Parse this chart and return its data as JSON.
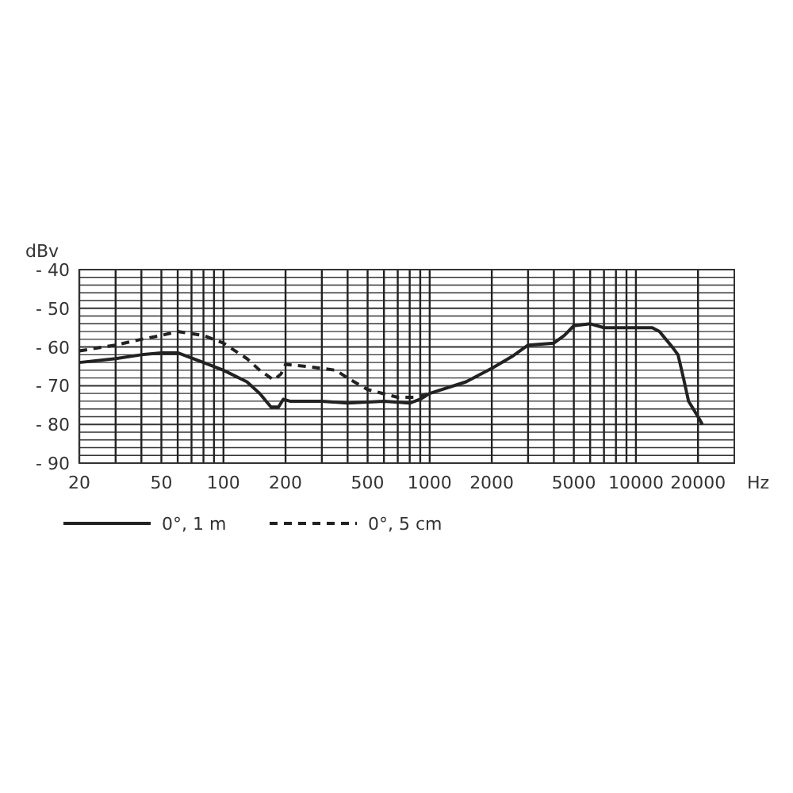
{
  "chart_data": {
    "type": "line",
    "xlabel": "Hz",
    "ylabel": "dBv",
    "log": "x",
    "grid": true,
    "legend": "bottom",
    "xlim": [
      20,
      30000
    ],
    "ylim": [
      -90,
      -40
    ],
    "xticks": [
      20,
      {
        "value": 30,
        "label": null
      },
      {
        "value": 40,
        "label": null
      },
      50,
      {
        "value": 60,
        "label": null
      },
      {
        "value": 70,
        "label": null
      },
      {
        "value": 80,
        "label": null
      },
      {
        "value": 90,
        "label": null
      },
      100,
      200,
      {
        "value": 300,
        "label": null
      },
      {
        "value": 400,
        "label": null
      },
      500,
      {
        "value": 600,
        "label": null
      },
      {
        "value": 700,
        "label": null
      },
      {
        "value": 800,
        "label": null
      },
      {
        "value": 900,
        "label": null
      },
      1000,
      2000,
      {
        "value": 3000,
        "label": null
      },
      {
        "value": 4000,
        "label": null
      },
      5000,
      {
        "value": 6000,
        "label": null
      },
      {
        "value": 7000,
        "label": null
      },
      {
        "value": 8000,
        "label": null
      },
      {
        "value": 9000,
        "label": null
      },
      10000,
      20000
    ],
    "yticks": [
      {
        "value": -90,
        "label": "- 90"
      },
      {
        "value": -88,
        "label": null
      },
      {
        "value": -86,
        "label": null
      },
      {
        "value": -84,
        "label": null
      },
      {
        "value": -82,
        "label": null
      },
      {
        "value": -80,
        "label": "- 80"
      },
      {
        "value": -78,
        "label": null
      },
      {
        "value": -76,
        "label": null
      },
      {
        "value": -74,
        "label": null
      },
      {
        "value": -72,
        "label": null
      },
      {
        "value": -70,
        "label": "- 70"
      },
      {
        "value": -68,
        "label": null
      },
      {
        "value": -66,
        "label": null
      },
      {
        "value": -64,
        "label": null
      },
      {
        "value": -62,
        "label": null
      },
      {
        "value": -60,
        "label": "- 60"
      },
      {
        "value": -58,
        "label": null
      },
      {
        "value": -56,
        "label": null
      },
      {
        "value": -54,
        "label": null
      },
      {
        "value": -52,
        "label": null
      },
      {
        "value": -50,
        "label": "- 50"
      },
      {
        "value": -48,
        "label": null
      },
      {
        "value": -46,
        "label": null
      },
      {
        "value": -44,
        "label": null
      },
      {
        "value": -42,
        "label": null
      },
      {
        "value": -40,
        "label": "- 40"
      }
    ],
    "series": [
      {
        "name": "0°, 1 m",
        "color": "#222222",
        "line_style": "solid",
        "x": [
          20,
          30,
          40,
          50,
          60,
          80,
          100,
          130,
          150,
          170,
          185,
          195,
          210,
          300,
          400,
          600,
          800,
          900,
          1000,
          1500,
          2000,
          2500,
          3000,
          4000,
          4500,
          5000,
          6000,
          7000,
          10000,
          12000,
          13000,
          15000,
          16000,
          17000,
          18000,
          20000,
          21000
        ],
        "values": [
          -64,
          -63,
          -62,
          -61.5,
          -61.5,
          -64,
          -66,
          -69,
          -72,
          -75.5,
          -75.5,
          -73.5,
          -74,
          -74,
          -74.5,
          -74,
          -74.5,
          -73.5,
          -72,
          -69,
          -65.5,
          -62.5,
          -59.5,
          -59,
          -57,
          -54.5,
          -54,
          -55,
          -55,
          -55,
          -56,
          -60,
          -62,
          -68,
          -74,
          -78,
          -80
        ]
      },
      {
        "name": "0°, 5 cm",
        "color": "#222222",
        "line_style": "dashed",
        "x": [
          20,
          30,
          40,
          50,
          60,
          80,
          100,
          130,
          150,
          175,
          190,
          200,
          250,
          300,
          350,
          400,
          500,
          700,
          850,
          1000
        ],
        "values": [
          -61,
          -59.5,
          -58,
          -57,
          -56,
          -57,
          -59,
          -63,
          -66,
          -68.5,
          -67,
          -64.5,
          -65,
          -65.5,
          -66,
          -68,
          -71,
          -73,
          -73,
          -72
        ]
      }
    ]
  }
}
